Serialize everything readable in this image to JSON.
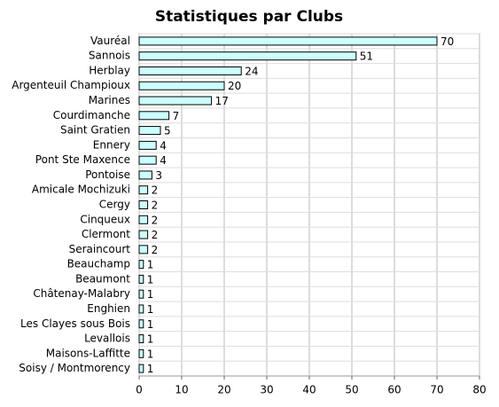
{
  "chart_data": {
    "type": "hbar",
    "title": "Statistiques par Clubs",
    "categories": [
      "Vauréal",
      "Sannois",
      "Herblay",
      "Argenteuil Champioux",
      "Marines",
      "Courdimanche",
      "Saint Gratien",
      "Ennery",
      "Pont Ste Maxence",
      "Pontoise",
      "Amicale Mochizuki",
      "Cergy",
      "Cinqueux",
      "Clermont",
      "Seraincourt",
      "Beauchamp",
      "Beaumont",
      "Châtenay-Malabry",
      "Enghien",
      "Les Clayes sous Bois",
      "Levallois",
      "Maisons-Laffitte",
      "Soisy / Montmorency"
    ],
    "values": [
      70,
      51,
      24,
      20,
      17,
      7,
      5,
      4,
      4,
      3,
      2,
      2,
      2,
      2,
      2,
      1,
      1,
      1,
      1,
      1,
      1,
      1,
      1
    ],
    "color": "#ccffff",
    "xlim": [
      0,
      80
    ],
    "xticks": [
      0,
      10,
      20,
      30,
      40,
      50,
      60,
      70,
      80
    ],
    "grid": true
  }
}
